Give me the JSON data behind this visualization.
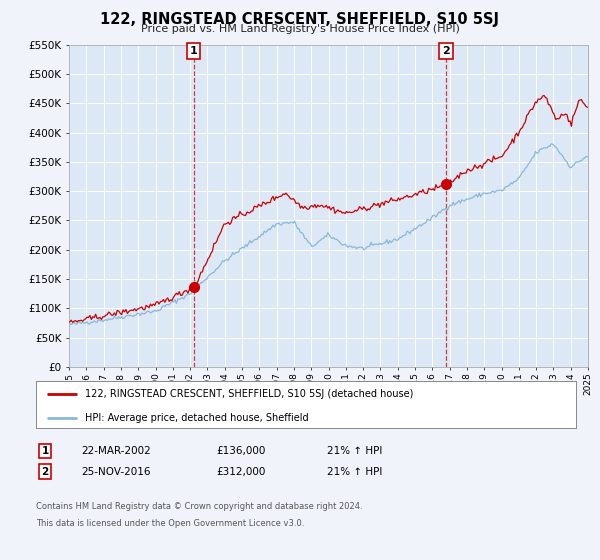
{
  "title": "122, RINGSTEAD CRESCENT, SHEFFIELD, S10 5SJ",
  "subtitle": "Price paid vs. HM Land Registry's House Price Index (HPI)",
  "bg_color": "#f0f4fa",
  "plot_bg_color": "#dce8f5",
  "grid_color": "#ffffff",
  "red_line_color": "#cc0000",
  "blue_line_color": "#8ab8d8",
  "marker1_value": 136000,
  "marker2_value": 312000,
  "event1_date": "22-MAR-2002",
  "event1_price": "£136,000",
  "event1_hpi": "21% ↑ HPI",
  "event2_date": "25-NOV-2016",
  "event2_price": "£312,000",
  "event2_hpi": "21% ↑ HPI",
  "legend_label1": "122, RINGSTEAD CRESCENT, SHEFFIELD, S10 5SJ (detached house)",
  "legend_label2": "HPI: Average price, detached house, Sheffield",
  "footer_line1": "Contains HM Land Registry data © Crown copyright and database right 2024.",
  "footer_line2": "This data is licensed under the Open Government Licence v3.0.",
  "ylim": [
    0,
    550000
  ],
  "yticks": [
    0,
    50000,
    100000,
    150000,
    200000,
    250000,
    300000,
    350000,
    400000,
    450000,
    500000,
    550000
  ],
  "ytick_labels": [
    "£0",
    "£50K",
    "£100K",
    "£150K",
    "£200K",
    "£250K",
    "£300K",
    "£350K",
    "£400K",
    "£450K",
    "£500K",
    "£550K"
  ],
  "year_start": 1995,
  "year_end": 2025
}
